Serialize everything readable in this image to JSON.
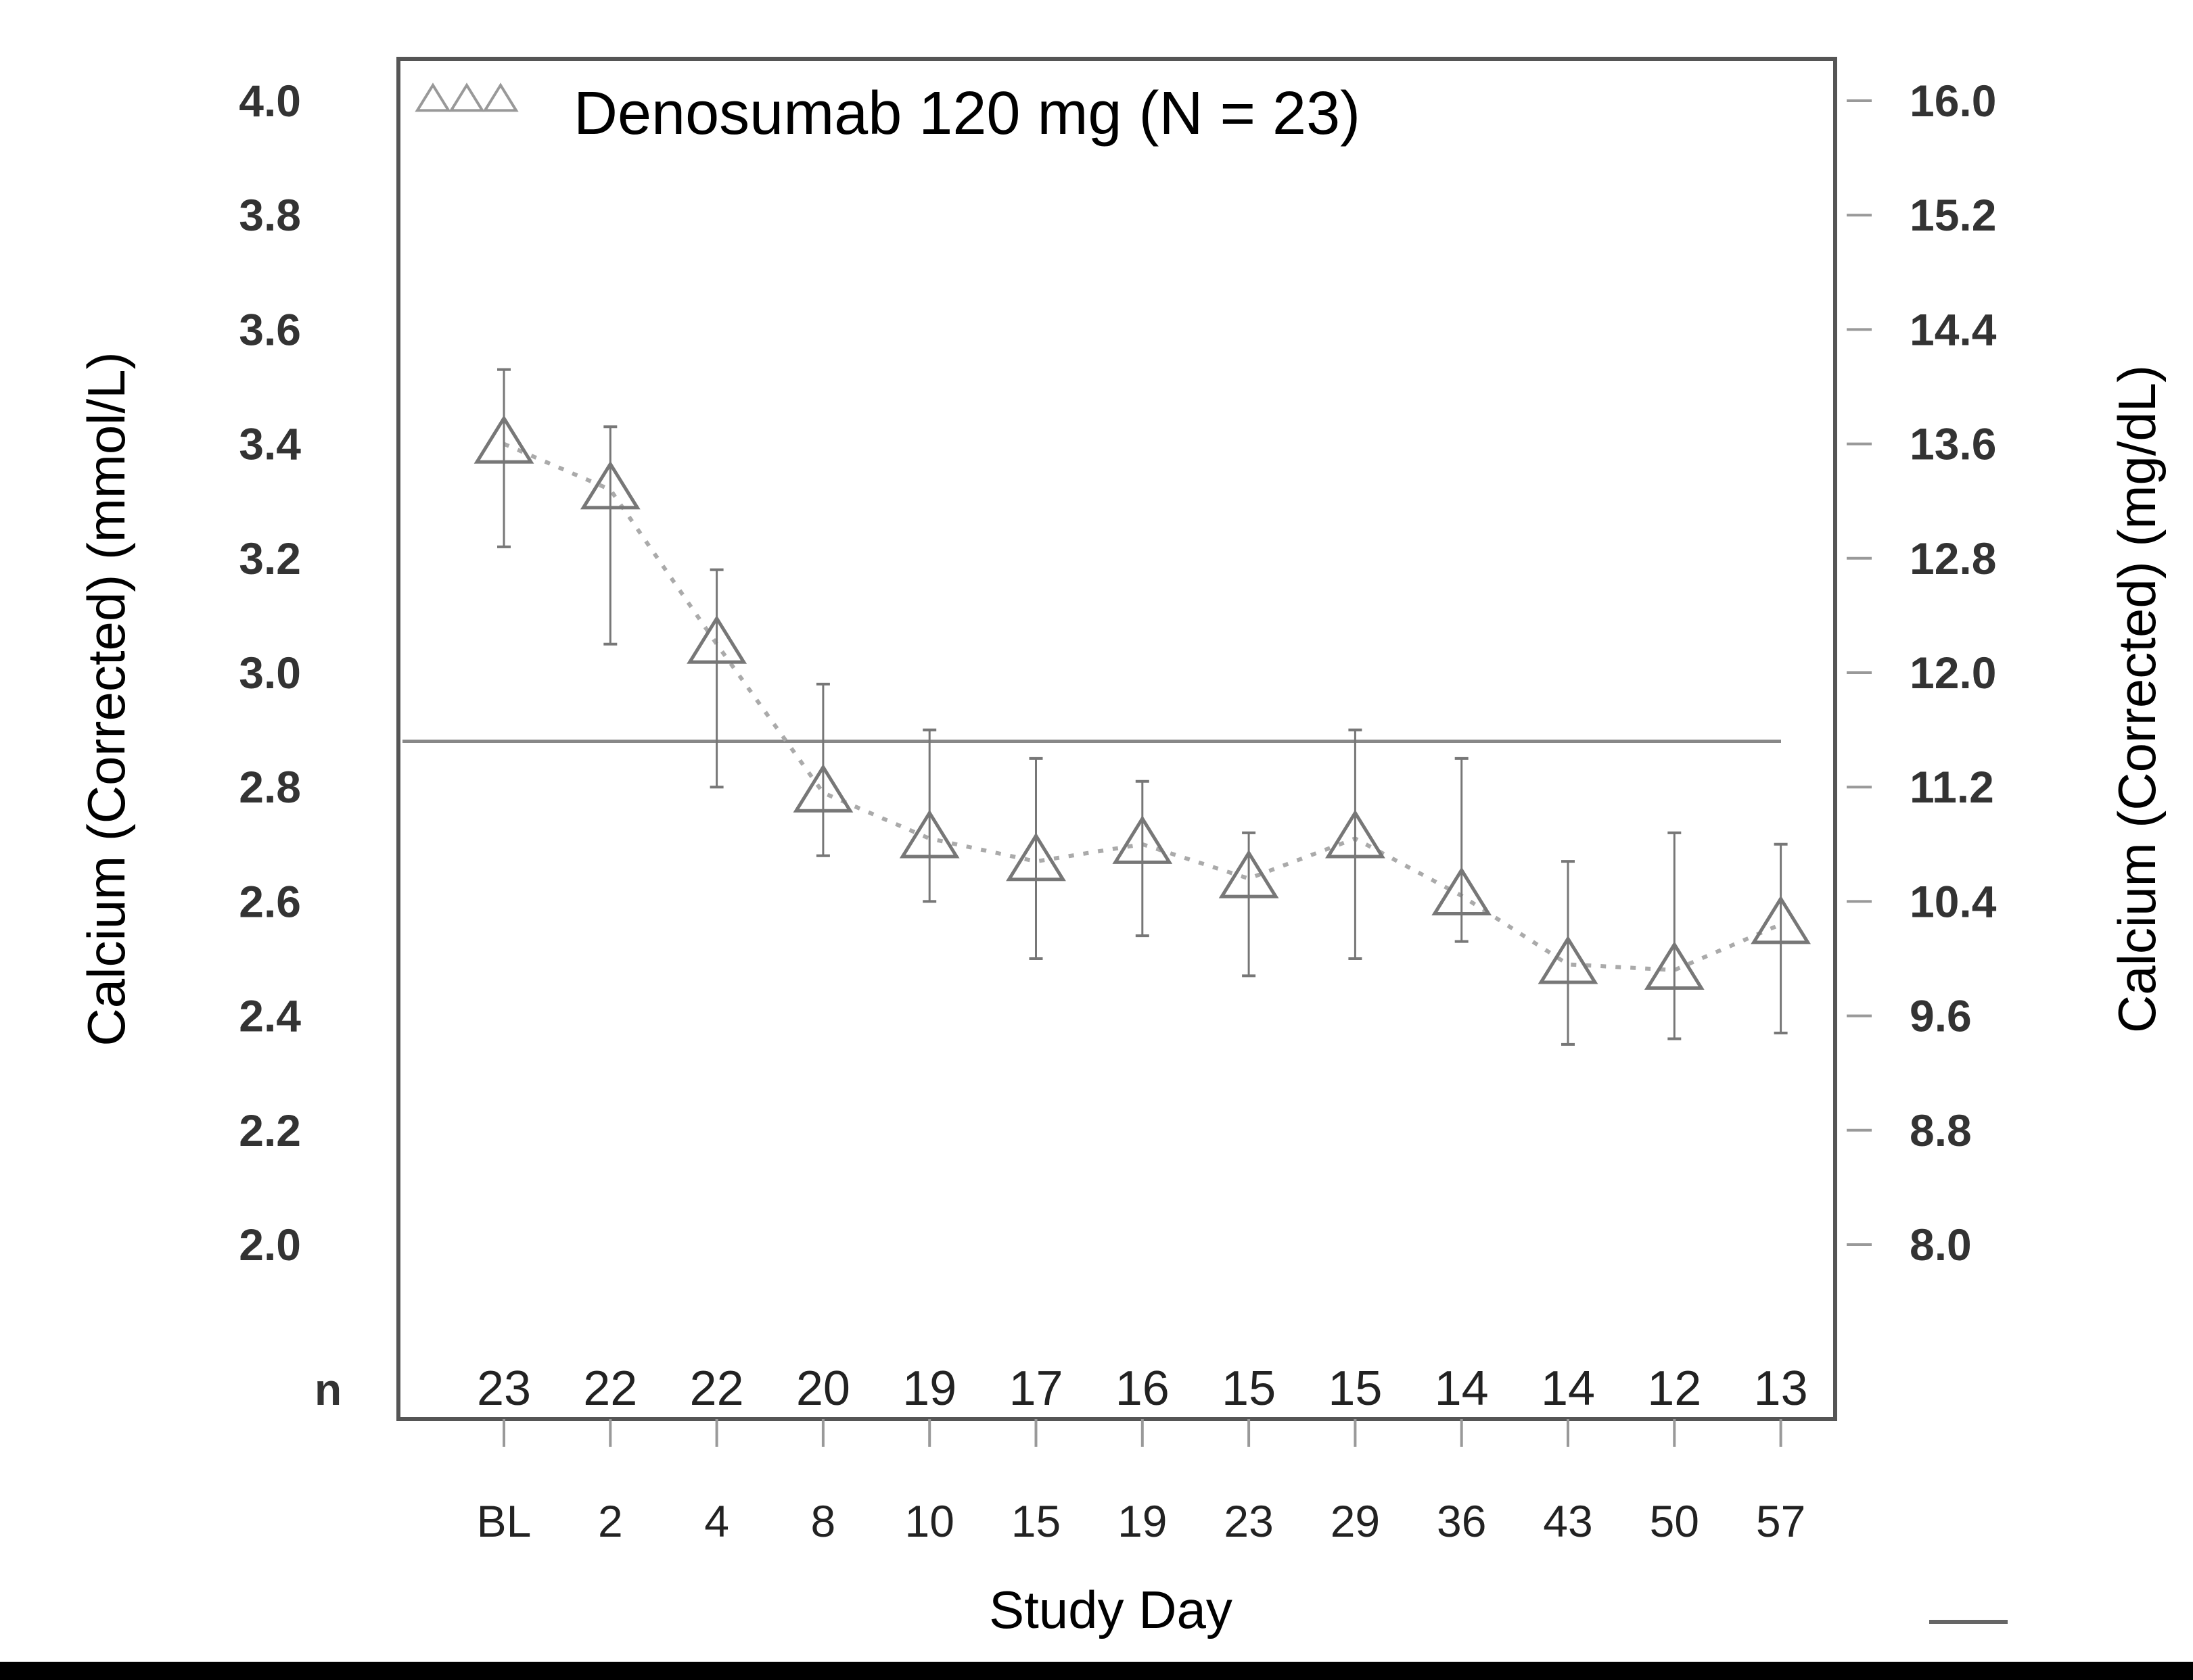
{
  "chart_data": {
    "type": "line",
    "title": "",
    "legend": {
      "entries": [
        "Denosumab 120 mg (N = 23)"
      ],
      "position": "top-left",
      "marker": "open-triangle"
    },
    "xlabel": "Study Day",
    "ylabel": "Calcium (Corrected) (mmol/L)",
    "ylabel_right": "Calcium (Corrected) (mg/dL)",
    "categories": [
      "BL",
      "2",
      "4",
      "8",
      "10",
      "15",
      "19",
      "23",
      "29",
      "36",
      "43",
      "50",
      "57"
    ],
    "n_label": "n",
    "n": [
      "23",
      "22",
      "22",
      "20",
      "19",
      "17",
      "16",
      "15",
      "15",
      "14",
      "14",
      "12",
      "13"
    ],
    "series": [
      {
        "name": "Denosumab 120 mg (N = 23)",
        "values": [
          3.4,
          3.32,
          3.05,
          2.79,
          2.71,
          2.67,
          2.7,
          2.64,
          2.71,
          2.61,
          2.49,
          2.48,
          2.56
        ],
        "error_low": [
          3.22,
          3.05,
          2.8,
          2.68,
          2.6,
          2.5,
          2.54,
          2.47,
          2.5,
          2.53,
          2.35,
          2.36,
          2.37
        ],
        "error_high": [
          3.53,
          3.43,
          3.18,
          2.98,
          2.9,
          2.85,
          2.81,
          2.72,
          2.9,
          2.85,
          2.67,
          2.72,
          2.7
        ],
        "line_style": "dotted",
        "color": "#888888"
      }
    ],
    "reference_line": 2.88,
    "ylim": [
      2.0,
      4.0
    ],
    "yticks": [
      "4.0",
      "3.8",
      "3.6",
      "3.4",
      "3.2",
      "3.0",
      "2.8",
      "2.6",
      "2.4",
      "2.2",
      "2.0"
    ],
    "yticks_right": [
      "16.0",
      "15.2",
      "14.4",
      "13.6",
      "12.8",
      "12.0",
      "11.2",
      "10.4",
      "9.6",
      "8.8",
      "8.0"
    ],
    "grid": false
  }
}
